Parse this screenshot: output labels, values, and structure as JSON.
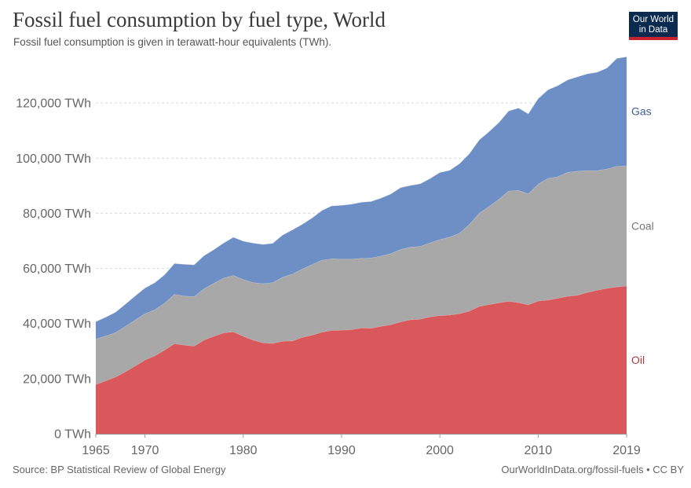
{
  "header": {
    "title": "Fossil fuel consumption by fuel type, World",
    "subtitle": "Fossil fuel consumption is given in terawatt-hour equivalents (TWh).",
    "logo_line1": "Our World",
    "logo_line2": "in Data"
  },
  "footer": {
    "source": "Source: BP Statistical Review of Global Energy",
    "link": "OurWorldInData.org/fossil-fuels • CC BY"
  },
  "chart_data": {
    "type": "area",
    "stacked": true,
    "x": [
      1965,
      1966,
      1967,
      1968,
      1969,
      1970,
      1971,
      1972,
      1973,
      1974,
      1975,
      1976,
      1977,
      1978,
      1979,
      1980,
      1981,
      1982,
      1983,
      1984,
      1985,
      1986,
      1987,
      1988,
      1989,
      1990,
      1991,
      1992,
      1993,
      1994,
      1995,
      1996,
      1997,
      1998,
      1999,
      2000,
      2001,
      2002,
      2003,
      2004,
      2005,
      2006,
      2007,
      2008,
      2009,
      2010,
      2011,
      2012,
      2013,
      2014,
      2015,
      2016,
      2017,
      2018,
      2019
    ],
    "x_ticks": [
      1965,
      1970,
      1980,
      1990,
      2000,
      2010,
      2019
    ],
    "x_tick_labels": [
      "1965",
      "1970",
      "1980",
      "1990",
      "2000",
      "2010",
      "2019"
    ],
    "y_ticks": [
      0,
      20000,
      40000,
      60000,
      80000,
      100000,
      120000
    ],
    "y_tick_labels": [
      "0 TWh",
      "20,000 TWh",
      "40,000 TWh",
      "60,000 TWh",
      "80,000 TWh",
      "100,000 TWh",
      "120,000 TWh"
    ],
    "ylim": [
      0,
      138000
    ],
    "xlim": [
      1965,
      2019
    ],
    "grid": "horizontal-dashed",
    "legend": "labels at right end of areas",
    "series": [
      {
        "name": "Oil",
        "color": "#d9585b",
        "values": [
          17900,
          19200,
          20600,
          22500,
          24600,
          26800,
          28300,
          30400,
          32700,
          32200,
          31800,
          34000,
          35400,
          36600,
          37000,
          35400,
          34000,
          33000,
          32800,
          33600,
          33700,
          35000,
          35800,
          36900,
          37500,
          37600,
          37800,
          38400,
          38300,
          39000,
          39600,
          40600,
          41400,
          41600,
          42400,
          42900,
          43100,
          43600,
          44500,
          46200,
          46900,
          47500,
          48100,
          47600,
          46800,
          48200,
          48500,
          49200,
          49900,
          50300,
          51300,
          52100,
          52800,
          53300,
          53600
        ]
      },
      {
        "name": "Coal",
        "color": "#a8a8a8",
        "values": [
          16500,
          16300,
          16100,
          16500,
          16700,
          16800,
          16700,
          17000,
          17900,
          17800,
          18000,
          18600,
          19200,
          19900,
          20500,
          20600,
          20900,
          21500,
          22100,
          23200,
          24300,
          24800,
          25600,
          26100,
          26000,
          25800,
          25600,
          25300,
          25500,
          25500,
          25800,
          26300,
          26300,
          26400,
          26900,
          27600,
          28300,
          29200,
          31500,
          33800,
          35600,
          37600,
          40000,
          40700,
          40300,
          42400,
          44200,
          44100,
          45000,
          45000,
          44200,
          43400,
          43300,
          43800,
          43600
        ]
      },
      {
        "name": "Gas",
        "color": "#6d8fc6",
        "values": [
          6300,
          6800,
          7400,
          8000,
          8700,
          9300,
          9800,
          10300,
          11200,
          11500,
          11500,
          12000,
          12200,
          12700,
          13800,
          13900,
          14300,
          14200,
          14200,
          15300,
          16000,
          16200,
          16900,
          18000,
          19200,
          19500,
          19900,
          20300,
          20500,
          21000,
          21600,
          22400,
          22400,
          22700,
          23300,
          24300,
          24200,
          25200,
          25600,
          26600,
          27100,
          27800,
          29000,
          29900,
          29000,
          31000,
          32100,
          33000,
          33500,
          34200,
          35100,
          35700,
          36600,
          39100,
          39600
        ]
      }
    ]
  }
}
